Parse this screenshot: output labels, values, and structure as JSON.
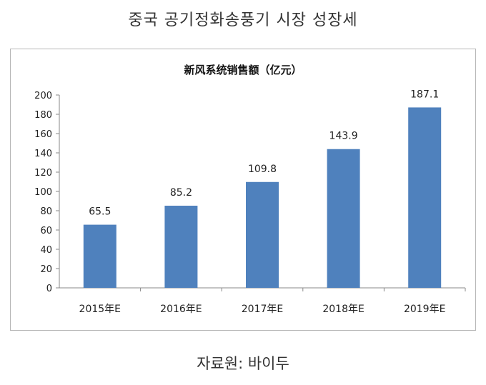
{
  "page_title": "중국 공기정화송풍기 시장 성장세",
  "source": "자료원: 바이두",
  "chart_data": {
    "type": "bar",
    "title": "新风系统销售额（亿元）",
    "categories": [
      "2015年E",
      "2016年E",
      "2017年E",
      "2018年E",
      "2019年E"
    ],
    "values": [
      65.5,
      85.2,
      109.8,
      143.9,
      187.1
    ],
    "data_labels": [
      "65.5",
      "85.2",
      "109.8",
      "143.9",
      "187.1"
    ],
    "y_ticks": [
      "0",
      "20",
      "40",
      "60",
      "80",
      "100",
      "120",
      "140",
      "160",
      "180",
      "200"
    ],
    "ylim": [
      0,
      200
    ],
    "grid": false,
    "legend": "none",
    "bar_color": "#4f81bd"
  }
}
